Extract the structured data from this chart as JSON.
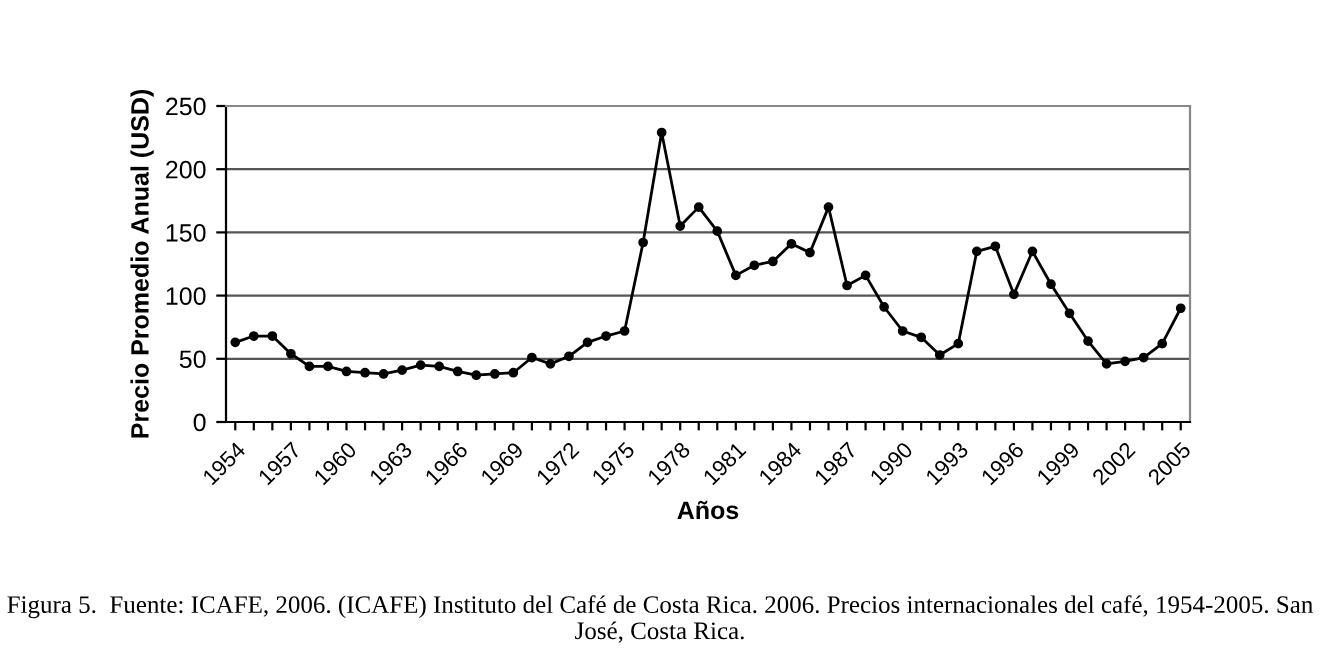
{
  "chart_data": {
    "type": "line",
    "xlabel": "Años",
    "ylabel": "Precio Promedio Anual (USD)",
    "categories": [
      "1954",
      null,
      null,
      "1957",
      null,
      null,
      "1960",
      null,
      null,
      "1963",
      null,
      null,
      "1966",
      null,
      null,
      "1969",
      null,
      null,
      "1972",
      null,
      null,
      "1975",
      null,
      null,
      "1978",
      null,
      null,
      "1981",
      null,
      null,
      "1984",
      null,
      null,
      "1987",
      null,
      null,
      "1990",
      null,
      null,
      "1993",
      null,
      null,
      "1996",
      null,
      null,
      "1999",
      null,
      null,
      "2002",
      null,
      null,
      "2005"
    ],
    "series": [
      {
        "color": "#000000",
        "values": [
          63,
          68,
          68,
          54,
          44,
          44,
          40,
          39,
          38,
          41,
          45,
          44,
          40,
          37,
          38,
          39,
          51,
          46,
          52,
          63,
          68,
          72,
          142,
          229,
          155,
          170,
          151,
          116,
          124,
          127,
          141,
          134,
          170,
          108,
          116,
          91,
          72,
          67,
          53,
          62,
          135,
          139,
          101,
          135,
          109,
          86,
          64,
          46,
          48,
          51,
          62,
          90
        ]
      }
    ],
    "ylim": [
      0,
      250
    ],
    "yticks": [
      0,
      50,
      100,
      150,
      200,
      250
    ],
    "grid": "y",
    "marker": "circle",
    "line_style": "solid",
    "legend": false,
    "annotations": [
      "Figura 5.  Fuente: ICAFE, 2006. (ICAFE) Instituto del Café de Costa Rica. 2006. Precios internacionales del café, 1954-2005. San José, Costa Rica."
    ]
  }
}
